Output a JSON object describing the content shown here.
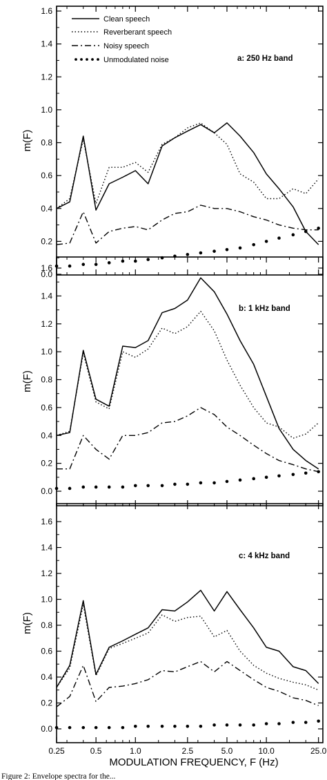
{
  "chart_data": [
    {
      "type": "line",
      "title": "a: 250 Hz band",
      "ylabel": "m(F)",
      "xlabel": "",
      "xscale": "log",
      "xlim": [
        0.25,
        27
      ],
      "ylim": [
        0.0,
        1.65
      ],
      "yticks": [
        "0.0",
        "0.2",
        "0.4",
        "0.6",
        "0.8",
        "1.0",
        "1.2",
        "1.4",
        "1.6"
      ],
      "x": [
        0.25,
        0.315,
        0.4,
        0.5,
        0.63,
        0.8,
        1.0,
        1.25,
        1.6,
        2.0,
        2.5,
        3.15,
        4.0,
        5.0,
        6.3,
        8.0,
        10.0,
        12.5,
        16.0,
        20.0,
        25.0
      ],
      "legend": {
        "placement": "top-left",
        "entries": [
          "Clean speech",
          "Reverberant speech",
          "Noisy speech",
          "Unmodulated noise"
        ]
      },
      "series": [
        {
          "name": "Clean speech",
          "style": "solid",
          "values": [
            0.4,
            0.44,
            0.84,
            0.39,
            0.55,
            0.59,
            0.63,
            0.55,
            0.78,
            0.83,
            0.87,
            0.91,
            0.86,
            0.92,
            0.84,
            0.74,
            0.61,
            0.52,
            0.41,
            0.26,
            0.18
          ]
        },
        {
          "name": "Reverberant speech",
          "style": "dotted",
          "values": [
            0.4,
            0.46,
            0.82,
            0.43,
            0.65,
            0.65,
            0.68,
            0.62,
            0.79,
            0.83,
            0.89,
            0.92,
            0.86,
            0.79,
            0.61,
            0.56,
            0.46,
            0.46,
            0.52,
            0.49,
            0.58
          ]
        },
        {
          "name": "Noisy speech",
          "style": "dashdot",
          "values": [
            0.18,
            0.19,
            0.38,
            0.19,
            0.26,
            0.28,
            0.29,
            0.27,
            0.33,
            0.37,
            0.38,
            0.42,
            0.4,
            0.4,
            0.38,
            0.35,
            0.33,
            0.3,
            0.28,
            0.27,
            0.27
          ]
        },
        {
          "name": "Unmodulated noise",
          "style": "dots",
          "values": [
            0.05,
            0.05,
            0.06,
            0.06,
            0.07,
            0.08,
            0.08,
            0.09,
            0.1,
            0.11,
            0.12,
            0.13,
            0.14,
            0.15,
            0.16,
            0.18,
            0.2,
            0.22,
            0.24,
            0.26,
            0.28
          ]
        }
      ]
    },
    {
      "type": "line",
      "title": "b: 1 kHz band",
      "ylabel": "m(F)",
      "xlabel": "",
      "xscale": "log",
      "xlim": [
        0.25,
        27
      ],
      "ylim": [
        0.0,
        1.65
      ],
      "yticks": [
        "0.0",
        "0.2",
        "0.4",
        "0.6",
        "0.8",
        "1.0",
        "1.2",
        "1.4",
        "1.6"
      ],
      "x": [
        0.25,
        0.315,
        0.4,
        0.5,
        0.63,
        0.8,
        1.0,
        1.25,
        1.6,
        2.0,
        2.5,
        3.15,
        4.0,
        5.0,
        6.3,
        8.0,
        10.0,
        12.5,
        16.0,
        20.0,
        25.0
      ],
      "series": [
        {
          "name": "Clean speech",
          "style": "solid",
          "values": [
            0.4,
            0.42,
            1.01,
            0.66,
            0.61,
            1.04,
            1.03,
            1.08,
            1.28,
            1.31,
            1.37,
            1.53,
            1.43,
            1.27,
            1.08,
            0.91,
            0.68,
            0.45,
            0.3,
            0.22,
            0.16
          ]
        },
        {
          "name": "Reverberant speech",
          "style": "dotted",
          "values": [
            0.4,
            0.43,
            0.99,
            0.64,
            0.59,
            1.0,
            0.96,
            1.02,
            1.17,
            1.13,
            1.18,
            1.29,
            1.15,
            0.94,
            0.76,
            0.6,
            0.49,
            0.46,
            0.38,
            0.41,
            0.49
          ]
        },
        {
          "name": "Noisy speech",
          "style": "dashdot",
          "values": [
            0.16,
            0.16,
            0.4,
            0.3,
            0.23,
            0.4,
            0.4,
            0.42,
            0.49,
            0.5,
            0.54,
            0.6,
            0.55,
            0.46,
            0.4,
            0.33,
            0.27,
            0.22,
            0.19,
            0.16,
            0.14
          ]
        },
        {
          "name": "Unmodulated noise",
          "style": "dots",
          "values": [
            0.02,
            0.02,
            0.03,
            0.03,
            0.03,
            0.03,
            0.04,
            0.04,
            0.04,
            0.05,
            0.05,
            0.06,
            0.06,
            0.07,
            0.08,
            0.09,
            0.1,
            0.11,
            0.12,
            0.13,
            0.14
          ]
        }
      ]
    },
    {
      "type": "line",
      "title": "c: 4 kHz band",
      "ylabel": "m(F)",
      "xlabel": "MODULATION FREQUENCY, F (Hz)",
      "xscale": "log",
      "xlim": [
        0.25,
        27
      ],
      "ylim": [
        0.0,
        1.65
      ],
      "yticks": [
        "0.0",
        "0.2",
        "0.4",
        "0.6",
        "0.8",
        "1.0",
        "1.2",
        "1.4",
        "1.6"
      ],
      "xticks": [
        "0.25",
        "0.5",
        "1.0",
        "2.5",
        "5.0",
        "10.0",
        "25.0"
      ],
      "x": [
        0.25,
        0.315,
        0.4,
        0.5,
        0.63,
        0.8,
        1.0,
        1.25,
        1.6,
        2.0,
        2.5,
        3.15,
        4.0,
        5.0,
        6.3,
        8.0,
        10.0,
        12.5,
        16.0,
        20.0,
        25.0
      ],
      "series": [
        {
          "name": "Clean speech",
          "style": "solid",
          "values": [
            0.32,
            0.49,
            0.99,
            0.42,
            0.63,
            0.68,
            0.73,
            0.78,
            0.92,
            0.91,
            0.98,
            1.07,
            0.91,
            1.06,
            0.92,
            0.78,
            0.63,
            0.6,
            0.48,
            0.45,
            0.35
          ]
        },
        {
          "name": "Reverberant speech",
          "style": "dotted",
          "values": [
            0.32,
            0.47,
            0.96,
            0.41,
            0.62,
            0.66,
            0.7,
            0.74,
            0.88,
            0.83,
            0.86,
            0.87,
            0.71,
            0.76,
            0.6,
            0.49,
            0.43,
            0.39,
            0.36,
            0.34,
            0.3
          ]
        },
        {
          "name": "Noisy speech",
          "style": "dashdot",
          "values": [
            0.17,
            0.25,
            0.49,
            0.21,
            0.32,
            0.33,
            0.35,
            0.38,
            0.45,
            0.44,
            0.48,
            0.52,
            0.44,
            0.52,
            0.45,
            0.38,
            0.32,
            0.29,
            0.24,
            0.22,
            0.18
          ]
        },
        {
          "name": "Unmodulated noise",
          "style": "dots",
          "values": [
            0.01,
            0.01,
            0.01,
            0.01,
            0.01,
            0.01,
            0.02,
            0.02,
            0.02,
            0.02,
            0.02,
            0.02,
            0.03,
            0.03,
            0.03,
            0.03,
            0.04,
            0.04,
            0.05,
            0.05,
            0.06
          ]
        }
      ]
    }
  ],
  "caption": "Figure 2: Envelope spectra for the..."
}
